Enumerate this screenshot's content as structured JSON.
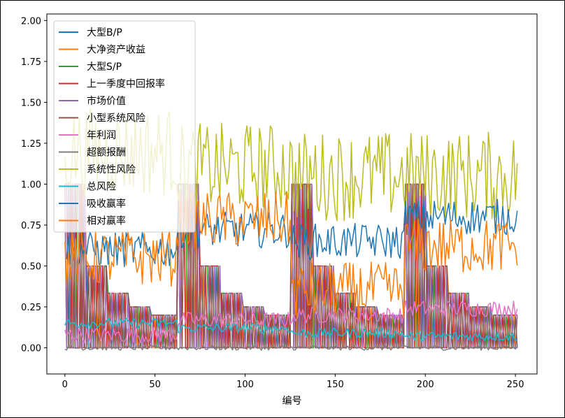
{
  "chart_data": {
    "type": "line",
    "xlabel": "编号",
    "ylabel": "",
    "xlim": [
      -10,
      262
    ],
    "ylim": [
      -0.16,
      2.04
    ],
    "xticks": [
      0,
      50,
      100,
      150,
      200,
      250
    ],
    "xtick_labels": [
      "0",
      "50",
      "100",
      "150",
      "200",
      "250"
    ],
    "yticks": [
      0.0,
      0.25,
      0.5,
      0.75,
      1.0,
      1.25,
      1.5,
      1.75,
      2.0
    ],
    "ytick_labels": [
      "0.00",
      "0.25",
      "0.50",
      "0.75",
      "1.00",
      "1.25",
      "1.50",
      "1.75",
      "2.00"
    ],
    "legend_position": "upper-left",
    "grid": false,
    "n_points": 252,
    "series": [
      {
        "name": "大型B/P",
        "color": "#1f77b4",
        "pattern": "quantile-steps",
        "note": "step levels 1/2..1/6 across four blocks, rapid oscillation"
      },
      {
        "name": "大净资产收益",
        "color": "#ff7f0e",
        "pattern": "quantile-steps"
      },
      {
        "name": "大型S/P",
        "color": "#2ca02c",
        "pattern": "quantile-steps"
      },
      {
        "name": "上一季度中回报率",
        "color": "#d62728",
        "pattern": "quantile-steps"
      },
      {
        "name": "市场价值",
        "color": "#9467bd",
        "pattern": "quantile-steps"
      },
      {
        "name": "小型系统风险",
        "color": "#8c564b",
        "pattern": "quantile-steps"
      },
      {
        "name": "年利润",
        "color": "#e377c2",
        "pattern": "noisy",
        "segments": [
          {
            "x": [
              0,
              62
            ],
            "center": 0.08
          },
          {
            "x": [
              63,
              125
            ],
            "center": 0.17
          },
          {
            "x": [
              126,
              188
            ],
            "center": 0.2
          },
          {
            "x": [
              189,
              251
            ],
            "center": 0.24
          }
        ]
      },
      {
        "name": "超额报酬",
        "color": "#7f7f7f",
        "pattern": "noisy",
        "segments": [
          {
            "x": [
              0,
              251
            ],
            "center": 0.0
          }
        ]
      },
      {
        "name": "系统性风险",
        "color": "#bcbd22",
        "pattern": "noisy",
        "segments": [
          {
            "x": [
              0,
              62
            ],
            "center": 1.2
          },
          {
            "x": [
              63,
              125
            ],
            "center": 1.1
          },
          {
            "x": [
              126,
              188
            ],
            "center": 1.05
          },
          {
            "x": [
              189,
              251
            ],
            "center": 1.05
          }
        ]
      },
      {
        "name": "总风险",
        "color": "#17becf",
        "pattern": "noisy",
        "segments": [
          {
            "x": [
              0,
              62
            ],
            "center": 0.15
          },
          {
            "x": [
              63,
              125
            ],
            "center": 0.12
          },
          {
            "x": [
              126,
              188
            ],
            "center": 0.09
          },
          {
            "x": [
              189,
              251
            ],
            "center": 0.07
          }
        ]
      },
      {
        "name": "吸收赢率",
        "color": "#1f77b4",
        "pattern": "noisy",
        "segments": [
          {
            "x": [
              0,
              62
            ],
            "center": 0.6
          },
          {
            "x": [
              63,
              125
            ],
            "center": 0.72
          },
          {
            "x": [
              126,
              188
            ],
            "center": 0.65
          },
          {
            "x": [
              189,
              251
            ],
            "center": 0.8
          }
        ]
      },
      {
        "name": "相对赢率",
        "color": "#ff7f0e",
        "pattern": "noisy",
        "segments": [
          {
            "x": [
              0,
              62
            ],
            "center": 0.55
          },
          {
            "x": [
              63,
              125
            ],
            "center": 0.78
          },
          {
            "x": [
              126,
              188
            ],
            "center": 0.35
          },
          {
            "x": [
              189,
              251
            ],
            "center": 0.62
          }
        ]
      }
    ]
  }
}
